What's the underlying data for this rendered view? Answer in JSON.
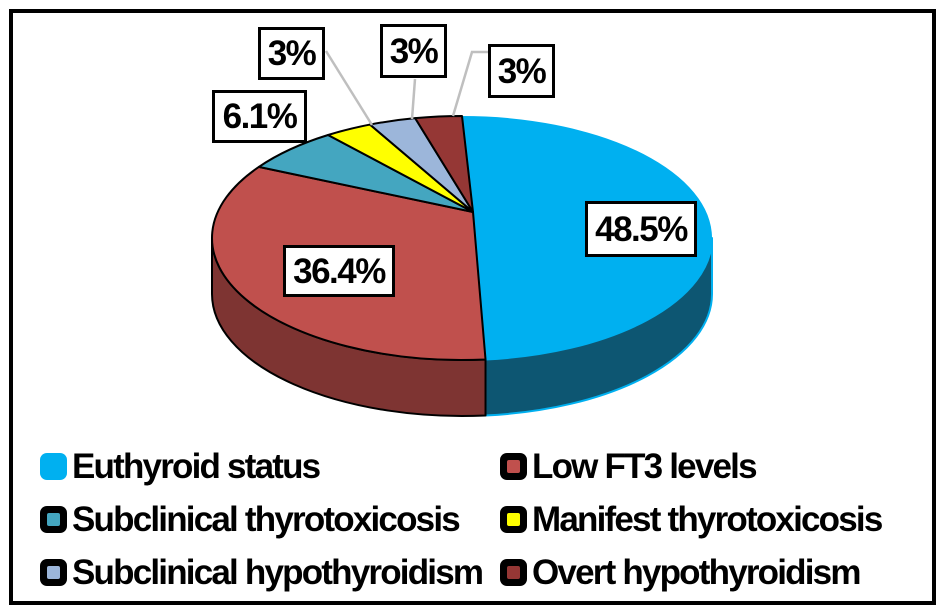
{
  "chart_data": {
    "type": "pie",
    "three_d": true,
    "title": "",
    "start_angle_deg": 0,
    "direction": "clockwise",
    "background": "#FFFFFF",
    "outline_color": "#000000",
    "leader_line_color": "#BFBFBF",
    "legend": {
      "position": "bottom",
      "columns": 2
    },
    "slices": [
      {
        "label": "Euthyroid status",
        "value": 48.5,
        "display": "48.5%",
        "color": "#00B0F0",
        "side_color": "#0D5672",
        "swatch_style": "solid"
      },
      {
        "label": "Low FT3 levels",
        "value": 36.4,
        "display": "36.4%",
        "color": "#C0504D",
        "side_color": "#7E3432",
        "swatch_style": "outlined"
      },
      {
        "label": "Subclinical thyrotoxicosis",
        "value": 6.1,
        "display": "6.1%",
        "color": "#44A6C0",
        "side_color": "#2C7A90",
        "swatch_style": "outlined"
      },
      {
        "label": "Manifest thyrotoxicosis",
        "value": 3,
        "display": "3%",
        "color": "#FFFF00",
        "side_color": "#A0A000",
        "swatch_style": "outlined"
      },
      {
        "label": "Subclinical hypothyroidism",
        "value": 3,
        "display": "3%",
        "color": "#9CB6DA",
        "side_color": "#64809F",
        "swatch_style": "outlined"
      },
      {
        "label": "Overt hypothyroidism",
        "value": 3,
        "display": "3%",
        "color": "#953735",
        "side_color": "#5C2220",
        "swatch_style": "outlined"
      }
    ]
  }
}
